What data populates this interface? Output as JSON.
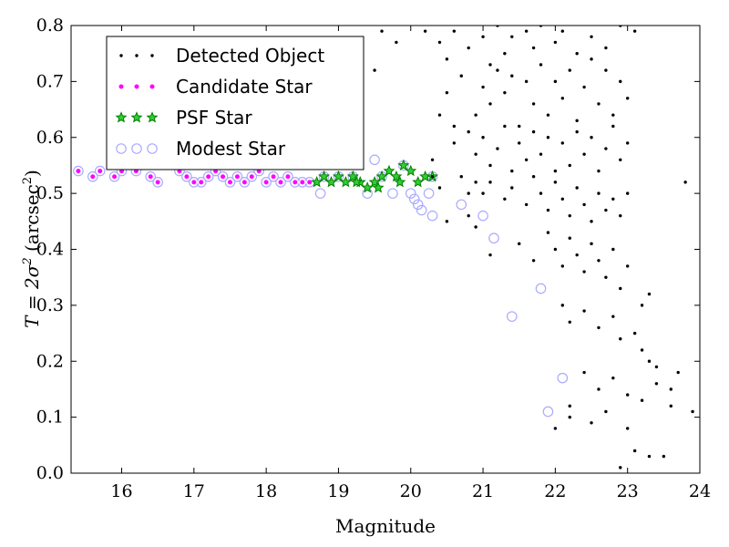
{
  "chart_data": {
    "type": "scatter",
    "title": "",
    "xlabel": "Magnitude",
    "ylabel_parts": {
      "main": "T = 2σ",
      "exp1": "2",
      "unit": " (arcsec",
      "exp2": "2",
      "close": ")"
    },
    "xlim": [
      15.3,
      24
    ],
    "ylim": [
      0.0,
      0.8
    ],
    "xticks": [
      "16",
      "17",
      "18",
      "19",
      "20",
      "21",
      "22",
      "23",
      "24"
    ],
    "yticks": [
      "0.0",
      "0.1",
      "0.2",
      "0.3",
      "0.4",
      "0.5",
      "0.6",
      "0.7",
      "0.8"
    ],
    "grid": false,
    "legend_position": "top-left",
    "colors": {
      "detected": "#000000",
      "candidate": "#ff00ff",
      "psf": "#008000",
      "modest": "#aaaaff"
    },
    "series": [
      {
        "name": "Detected Object",
        "marker": "dot",
        "values": [
          [
            20.2,
            0.79
          ],
          [
            20.4,
            0.77
          ],
          [
            20.5,
            0.74
          ],
          [
            20.6,
            0.79
          ],
          [
            20.8,
            0.76
          ],
          [
            21.0,
            0.78
          ],
          [
            21.1,
            0.73
          ],
          [
            21.2,
            0.8
          ],
          [
            21.3,
            0.75
          ],
          [
            21.4,
            0.78
          ],
          [
            21.6,
            0.79
          ],
          [
            21.7,
            0.76
          ],
          [
            21.8,
            0.8
          ],
          [
            22.0,
            0.77
          ],
          [
            22.1,
            0.79
          ],
          [
            22.3,
            0.75
          ],
          [
            22.5,
            0.78
          ],
          [
            22.7,
            0.76
          ],
          [
            22.9,
            0.8
          ],
          [
            23.1,
            0.79
          ],
          [
            19.8,
            0.77
          ],
          [
            19.6,
            0.79
          ],
          [
            19.5,
            0.72
          ],
          [
            19.2,
            0.75
          ],
          [
            20.5,
            0.68
          ],
          [
            20.7,
            0.71
          ],
          [
            20.9,
            0.64
          ],
          [
            21.0,
            0.69
          ],
          [
            21.1,
            0.66
          ],
          [
            21.2,
            0.72
          ],
          [
            21.3,
            0.68
          ],
          [
            21.4,
            0.71
          ],
          [
            21.5,
            0.62
          ],
          [
            21.6,
            0.7
          ],
          [
            21.7,
            0.66
          ],
          [
            21.8,
            0.73
          ],
          [
            21.9,
            0.64
          ],
          [
            22.0,
            0.7
          ],
          [
            22.1,
            0.67
          ],
          [
            22.2,
            0.72
          ],
          [
            22.3,
            0.63
          ],
          [
            22.4,
            0.69
          ],
          [
            22.5,
            0.74
          ],
          [
            22.6,
            0.66
          ],
          [
            22.7,
            0.72
          ],
          [
            22.8,
            0.64
          ],
          [
            22.9,
            0.7
          ],
          [
            23.0,
            0.67
          ],
          [
            20.3,
            0.56
          ],
          [
            20.6,
            0.59
          ],
          [
            20.8,
            0.61
          ],
          [
            20.9,
            0.57
          ],
          [
            21.0,
            0.6
          ],
          [
            21.1,
            0.55
          ],
          [
            21.2,
            0.58
          ],
          [
            21.3,
            0.62
          ],
          [
            21.4,
            0.54
          ],
          [
            21.5,
            0.59
          ],
          [
            21.6,
            0.56
          ],
          [
            21.7,
            0.61
          ],
          [
            21.8,
            0.57
          ],
          [
            21.9,
            0.6
          ],
          [
            22.0,
            0.54
          ],
          [
            22.1,
            0.59
          ],
          [
            22.2,
            0.55
          ],
          [
            22.3,
            0.61
          ],
          [
            22.4,
            0.57
          ],
          [
            22.5,
            0.6
          ],
          [
            22.6,
            0.54
          ],
          [
            22.7,
            0.58
          ],
          [
            22.8,
            0.62
          ],
          [
            22.9,
            0.56
          ],
          [
            23.0,
            0.59
          ],
          [
            21.0,
            0.5
          ],
          [
            21.1,
            0.52
          ],
          [
            21.3,
            0.49
          ],
          [
            21.4,
            0.51
          ],
          [
            21.6,
            0.48
          ],
          [
            21.7,
            0.53
          ],
          [
            21.8,
            0.5
          ],
          [
            21.9,
            0.47
          ],
          [
            22.0,
            0.52
          ],
          [
            22.1,
            0.49
          ],
          [
            22.2,
            0.46
          ],
          [
            22.3,
            0.51
          ],
          [
            22.4,
            0.48
          ],
          [
            22.5,
            0.45
          ],
          [
            22.6,
            0.5
          ],
          [
            22.7,
            0.47
          ],
          [
            22.8,
            0.49
          ],
          [
            22.9,
            0.46
          ],
          [
            23.0,
            0.5
          ],
          [
            23.8,
            0.52
          ],
          [
            21.1,
            0.39
          ],
          [
            21.5,
            0.41
          ],
          [
            21.7,
            0.38
          ],
          [
            21.9,
            0.43
          ],
          [
            22.0,
            0.4
          ],
          [
            22.1,
            0.37
          ],
          [
            22.2,
            0.42
          ],
          [
            22.3,
            0.39
          ],
          [
            22.4,
            0.36
          ],
          [
            22.5,
            0.41
          ],
          [
            22.6,
            0.38
          ],
          [
            22.7,
            0.35
          ],
          [
            22.8,
            0.4
          ],
          [
            22.9,
            0.33
          ],
          [
            23.0,
            0.37
          ],
          [
            23.2,
            0.3
          ],
          [
            23.3,
            0.32
          ],
          [
            22.1,
            0.3
          ],
          [
            22.2,
            0.27
          ],
          [
            22.4,
            0.29
          ],
          [
            22.6,
            0.26
          ],
          [
            22.8,
            0.28
          ],
          [
            22.9,
            0.24
          ],
          [
            23.1,
            0.25
          ],
          [
            23.2,
            0.22
          ],
          [
            23.3,
            0.2
          ],
          [
            23.4,
            0.19
          ],
          [
            22.4,
            0.18
          ],
          [
            22.6,
            0.15
          ],
          [
            22.8,
            0.17
          ],
          [
            23.0,
            0.14
          ],
          [
            23.2,
            0.13
          ],
          [
            23.4,
            0.16
          ],
          [
            23.6,
            0.15
          ],
          [
            23.7,
            0.18
          ],
          [
            23.9,
            0.11
          ],
          [
            22.2,
            0.12
          ],
          [
            22.5,
            0.09
          ],
          [
            22.7,
            0.11
          ],
          [
            23.0,
            0.08
          ],
          [
            23.1,
            0.04
          ],
          [
            23.3,
            0.03
          ],
          [
            23.5,
            0.03
          ],
          [
            23.6,
            0.12
          ],
          [
            22.9,
            0.01
          ],
          [
            22.0,
            0.08
          ],
          [
            22.2,
            0.1
          ],
          [
            20.4,
            0.64
          ],
          [
            20.6,
            0.62
          ],
          [
            20.5,
            0.45
          ],
          [
            20.8,
            0.46
          ],
          [
            20.9,
            0.44
          ],
          [
            20.3,
            0.53
          ],
          [
            20.4,
            0.51
          ],
          [
            20.7,
            0.53
          ],
          [
            20.8,
            0.5
          ],
          [
            20.9,
            0.52
          ]
        ]
      },
      {
        "name": "Candidate Star",
        "marker": "circle",
        "values": [
          [
            15.4,
            0.54
          ],
          [
            15.6,
            0.53
          ],
          [
            15.7,
            0.54
          ],
          [
            15.9,
            0.53
          ],
          [
            16.0,
            0.54
          ],
          [
            16.2,
            0.54
          ],
          [
            16.4,
            0.53
          ],
          [
            16.5,
            0.52
          ],
          [
            16.8,
            0.54
          ],
          [
            16.9,
            0.53
          ],
          [
            17.0,
            0.52
          ],
          [
            17.1,
            0.52
          ],
          [
            17.2,
            0.53
          ],
          [
            17.3,
            0.54
          ],
          [
            17.4,
            0.53
          ],
          [
            17.5,
            0.52
          ],
          [
            17.6,
            0.53
          ],
          [
            17.7,
            0.52
          ],
          [
            17.8,
            0.53
          ],
          [
            17.9,
            0.54
          ],
          [
            18.0,
            0.52
          ],
          [
            18.1,
            0.53
          ],
          [
            18.2,
            0.52
          ],
          [
            18.3,
            0.53
          ],
          [
            18.4,
            0.52
          ],
          [
            18.5,
            0.52
          ],
          [
            18.6,
            0.52
          ],
          [
            18.7,
            0.52
          ]
        ]
      },
      {
        "name": "PSF Star",
        "marker": "star",
        "values": [
          [
            18.7,
            0.52
          ],
          [
            18.8,
            0.53
          ],
          [
            18.9,
            0.52
          ],
          [
            19.0,
            0.53
          ],
          [
            19.1,
            0.52
          ],
          [
            19.2,
            0.53
          ],
          [
            19.3,
            0.52
          ],
          [
            19.4,
            0.51
          ],
          [
            19.5,
            0.52
          ],
          [
            19.6,
            0.53
          ],
          [
            19.7,
            0.54
          ],
          [
            19.8,
            0.53
          ],
          [
            19.9,
            0.55
          ],
          [
            20.0,
            0.54
          ],
          [
            20.1,
            0.52
          ],
          [
            20.2,
            0.53
          ],
          [
            20.3,
            0.53
          ],
          [
            19.85,
            0.52
          ],
          [
            19.55,
            0.51
          ],
          [
            19.25,
            0.52
          ]
        ]
      },
      {
        "name": "Modest Star",
        "marker": "ring",
        "values": [
          [
            15.4,
            0.54
          ],
          [
            15.6,
            0.53
          ],
          [
            15.7,
            0.54
          ],
          [
            15.9,
            0.53
          ],
          [
            16.0,
            0.54
          ],
          [
            16.2,
            0.54
          ],
          [
            16.4,
            0.53
          ],
          [
            16.5,
            0.52
          ],
          [
            16.8,
            0.54
          ],
          [
            16.9,
            0.53
          ],
          [
            17.0,
            0.52
          ],
          [
            17.1,
            0.52
          ],
          [
            17.2,
            0.53
          ],
          [
            17.3,
            0.54
          ],
          [
            17.4,
            0.53
          ],
          [
            17.5,
            0.52
          ],
          [
            17.6,
            0.53
          ],
          [
            17.7,
            0.52
          ],
          [
            17.8,
            0.53
          ],
          [
            17.9,
            0.54
          ],
          [
            18.0,
            0.52
          ],
          [
            18.1,
            0.53
          ],
          [
            18.2,
            0.52
          ],
          [
            18.3,
            0.53
          ],
          [
            18.4,
            0.52
          ],
          [
            18.5,
            0.52
          ],
          [
            18.6,
            0.52
          ],
          [
            18.75,
            0.5
          ],
          [
            19.4,
            0.5
          ],
          [
            19.5,
            0.56
          ],
          [
            19.75,
            0.5
          ],
          [
            20.0,
            0.5
          ],
          [
            20.05,
            0.49
          ],
          [
            20.1,
            0.48
          ],
          [
            20.15,
            0.47
          ],
          [
            20.25,
            0.5
          ],
          [
            20.3,
            0.46
          ],
          [
            20.7,
            0.48
          ],
          [
            21.0,
            0.46
          ],
          [
            21.15,
            0.42
          ],
          [
            21.4,
            0.28
          ],
          [
            21.8,
            0.33
          ],
          [
            21.9,
            0.11
          ],
          [
            22.1,
            0.17
          ],
          [
            18.8,
            0.53
          ],
          [
            19.0,
            0.53
          ],
          [
            19.2,
            0.53
          ],
          [
            19.6,
            0.53
          ],
          [
            19.9,
            0.55
          ],
          [
            20.3,
            0.53
          ]
        ]
      }
    ]
  }
}
